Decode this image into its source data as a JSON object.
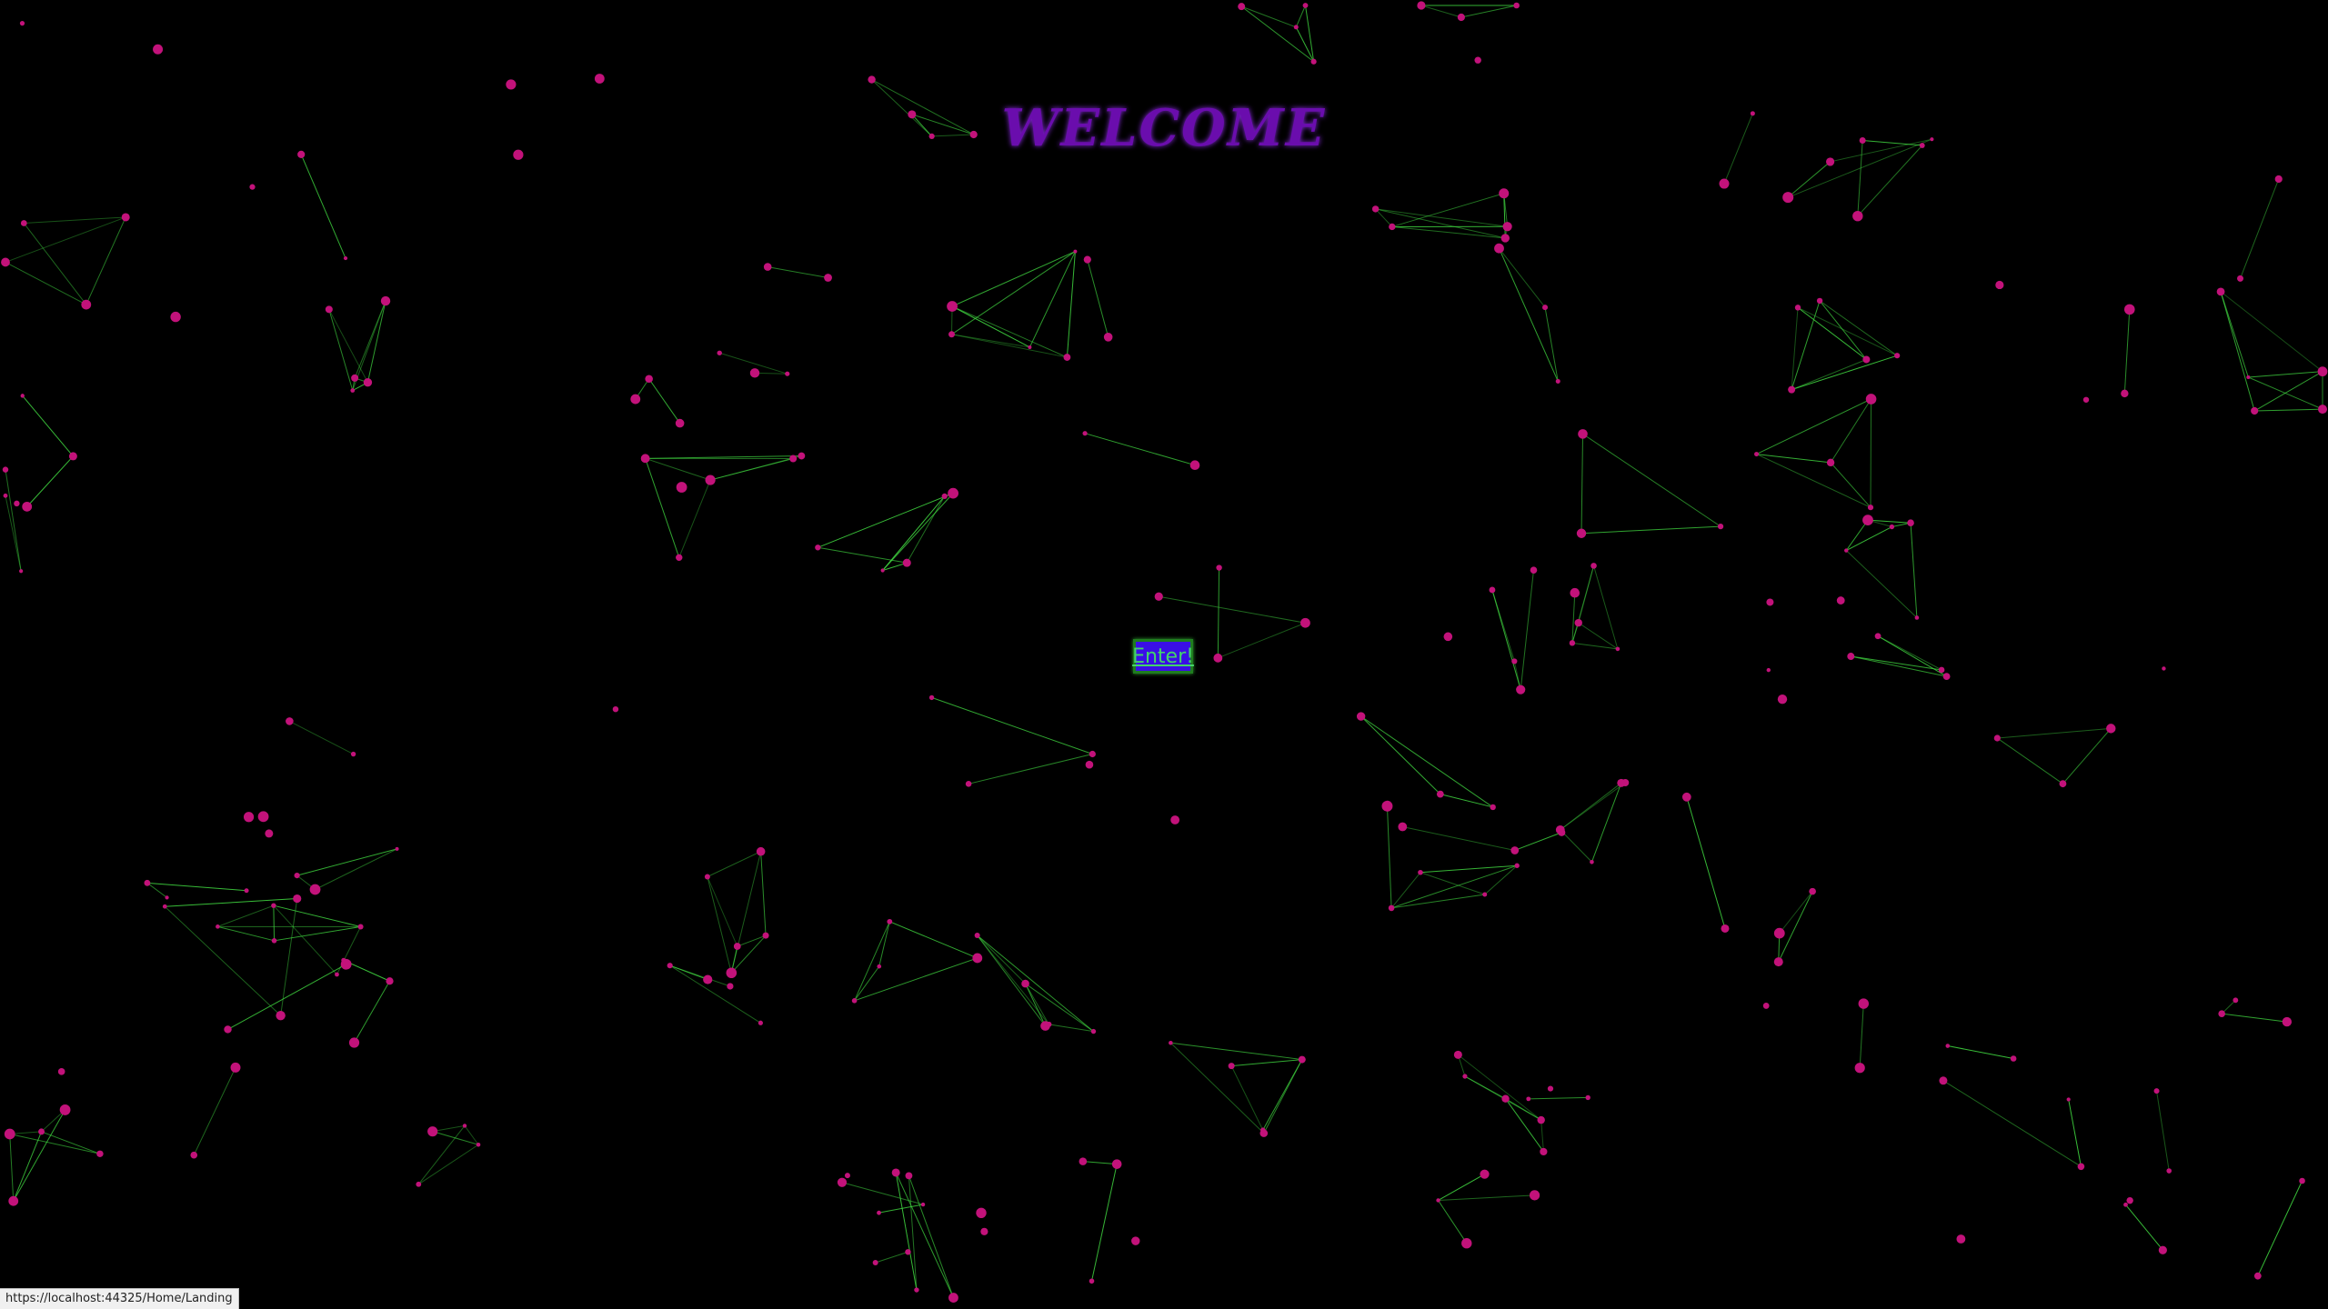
{
  "page": {
    "heading": "WELCOME",
    "enter_label": "Enter!"
  },
  "status_bar": {
    "url": "https://localhost:44325/Home/Landing"
  },
  "colors": {
    "background": "#000000",
    "node": "#c2127a",
    "edge": "#3fd43f",
    "heading": "#6a0dad",
    "button_bg": "#3a0fe6",
    "button_text": "#43d36a"
  },
  "background_animation": {
    "type": "particle-network"
  }
}
